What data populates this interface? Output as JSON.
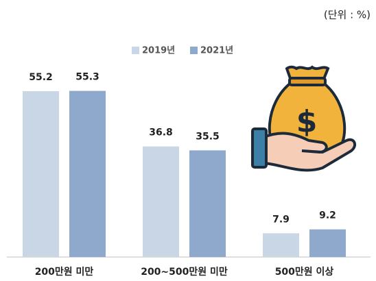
{
  "chart_data": {
    "type": "bar",
    "unit_note": "(단위 : %)",
    "categories": [
      "200만원 미만",
      "200~500만원 미만",
      "500만원 이상"
    ],
    "series": [
      {
        "name": "2019년",
        "color": "#c9d6e6",
        "values": [
          55.2,
          36.8,
          7.9
        ]
      },
      {
        "name": "2021년",
        "color": "#8fa9cc",
        "values": [
          55.3,
          35.5,
          9.2
        ]
      }
    ],
    "ylim": [
      0,
      60
    ],
    "legend": "top"
  }
}
